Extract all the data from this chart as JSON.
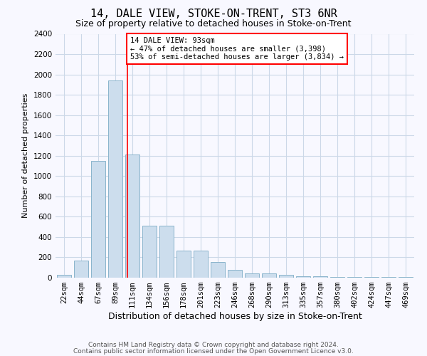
{
  "title1": "14, DALE VIEW, STOKE-ON-TRENT, ST3 6NR",
  "title2": "Size of property relative to detached houses in Stoke-on-Trent",
  "xlabel": "Distribution of detached houses by size in Stoke-on-Trent",
  "ylabel": "Number of detached properties",
  "categories": [
    "22sqm",
    "44sqm",
    "67sqm",
    "89sqm",
    "111sqm",
    "134sqm",
    "156sqm",
    "178sqm",
    "201sqm",
    "223sqm",
    "246sqm",
    "268sqm",
    "290sqm",
    "313sqm",
    "335sqm",
    "357sqm",
    "380sqm",
    "402sqm",
    "424sqm",
    "447sqm",
    "469sqm"
  ],
  "values": [
    30,
    165,
    1150,
    1940,
    1215,
    510,
    510,
    265,
    265,
    155,
    75,
    42,
    42,
    30,
    12,
    16,
    6,
    6,
    6,
    6,
    6
  ],
  "bar_color": "#ccdded",
  "bar_edge_color": "#8ab4cc",
  "grid_color": "#ccd8e8",
  "background_color": "#f8f8ff",
  "annotation_text": "14 DALE VIEW: 93sqm\n← 47% of detached houses are smaller (3,398)\n53% of semi-detached houses are larger (3,834) →",
  "red_line_x": 3.72,
  "ylim": [
    0,
    2400
  ],
  "yticks": [
    0,
    200,
    400,
    600,
    800,
    1000,
    1200,
    1400,
    1600,
    1800,
    2000,
    2200,
    2400
  ],
  "footer1": "Contains HM Land Registry data © Crown copyright and database right 2024.",
  "footer2": "Contains public sector information licensed under the Open Government Licence v3.0.",
  "title1_fontsize": 11,
  "title2_fontsize": 9,
  "ylabel_fontsize": 8,
  "xlabel_fontsize": 9,
  "tick_fontsize": 7.5,
  "footer_fontsize": 6.5,
  "ann_fontsize": 7.5
}
